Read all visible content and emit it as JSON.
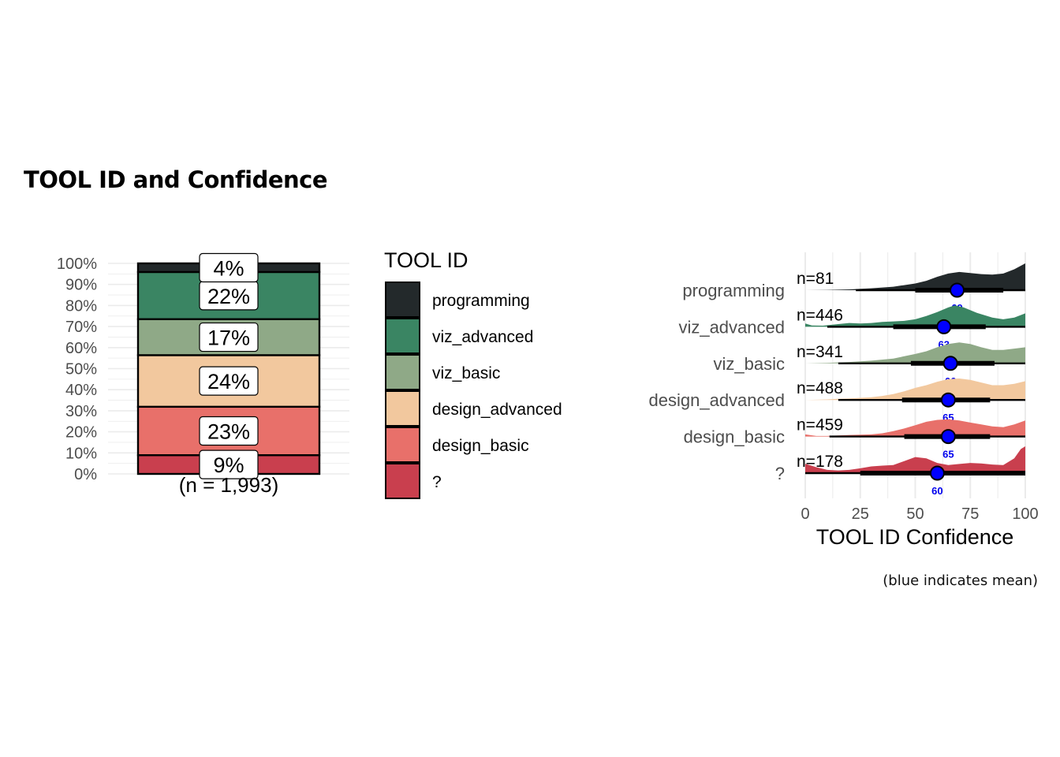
{
  "title": "TOOL ID and Confidence",
  "caption": "(blue indicates mean)",
  "colors": {
    "programming": "#23292b",
    "viz_advanced": "#3a8563",
    "viz_basic": "#8fa987",
    "design_advanced": "#f2c89e",
    "design_basic": "#e8706a",
    "?": "#c93f4e",
    "mean_point": "#0000ff",
    "mean_label": "#0000ee",
    "grid": "#ebebeb"
  },
  "chart_data": [
    {
      "type": "bar",
      "subtype": "stacked-100",
      "ylabel": "",
      "ylim": [
        0,
        1
      ],
      "ytick_labels": [
        "0%",
        "10%",
        "20%",
        "30%",
        "40%",
        "50%",
        "60%",
        "70%",
        "80%",
        "90%",
        "100%"
      ],
      "total_label": "(n = 1,993)",
      "legend_title": "TOOL ID",
      "legend_position": "right",
      "segments": [
        {
          "name": "?",
          "share": 0.089,
          "label": "9%"
        },
        {
          "name": "design_basic",
          "share": 0.23,
          "label": "23%"
        },
        {
          "name": "design_advanced",
          "share": 0.245,
          "label": "24%"
        },
        {
          "name": "viz_basic",
          "share": 0.171,
          "label": "17%"
        },
        {
          "name": "viz_advanced",
          "share": 0.224,
          "label": "22%"
        },
        {
          "name": "programming",
          "share": 0.041,
          "label": "4%"
        }
      ],
      "legend_order": [
        "programming",
        "viz_advanced",
        "viz_basic",
        "design_advanced",
        "design_basic",
        "?"
      ]
    },
    {
      "type": "area",
      "subtype": "ridgeline-halfeye",
      "xlabel": "TOOL ID Confidence",
      "xlim": [
        0,
        100
      ],
      "xticks": [
        0,
        25,
        50,
        75,
        100
      ],
      "grid": true,
      "rows": [
        {
          "name": "programming",
          "n_label": "n=81",
          "mean": 69,
          "mean_label": "69",
          "interval_66": [
            50,
            90
          ],
          "interval_95": [
            23,
            100
          ],
          "density": [
            [
              0,
              0
            ],
            [
              10,
              0.01
            ],
            [
              20,
              0.03
            ],
            [
              30,
              0.07
            ],
            [
              40,
              0.13
            ],
            [
              50,
              0.25
            ],
            [
              55,
              0.35
            ],
            [
              60,
              0.5
            ],
            [
              65,
              0.62
            ],
            [
              70,
              0.68
            ],
            [
              75,
              0.64
            ],
            [
              80,
              0.6
            ],
            [
              85,
              0.58
            ],
            [
              90,
              0.62
            ],
            [
              95,
              0.78
            ],
            [
              100,
              1
            ]
          ]
        },
        {
          "name": "viz_advanced",
          "n_label": "n=446",
          "mean": 63,
          "mean_label": "63",
          "interval_66": [
            40,
            82
          ],
          "interval_95": [
            10,
            100
          ],
          "density": [
            [
              0,
              0.12
            ],
            [
              3,
              0.05
            ],
            [
              8,
              0.04
            ],
            [
              15,
              0.1
            ],
            [
              20,
              0.14
            ],
            [
              25,
              0.12
            ],
            [
              30,
              0.14
            ],
            [
              35,
              0.18
            ],
            [
              40,
              0.2
            ],
            [
              45,
              0.22
            ],
            [
              50,
              0.28
            ],
            [
              55,
              0.4
            ],
            [
              60,
              0.55
            ],
            [
              65,
              0.72
            ],
            [
              68,
              0.8
            ],
            [
              72,
              0.72
            ],
            [
              78,
              0.52
            ],
            [
              85,
              0.34
            ],
            [
              90,
              0.28
            ],
            [
              95,
              0.34
            ],
            [
              100,
              0.5
            ]
          ]
        },
        {
          "name": "viz_basic",
          "n_label": "n=341",
          "mean": 66,
          "mean_label": "66",
          "interval_66": [
            48,
            86
          ],
          "interval_95": [
            15,
            100
          ],
          "density": [
            [
              0,
              0
            ],
            [
              10,
              0.02
            ],
            [
              20,
              0.05
            ],
            [
              30,
              0.1
            ],
            [
              40,
              0.18
            ],
            [
              50,
              0.35
            ],
            [
              55,
              0.45
            ],
            [
              60,
              0.6
            ],
            [
              65,
              0.72
            ],
            [
              70,
              0.78
            ],
            [
              75,
              0.72
            ],
            [
              80,
              0.6
            ],
            [
              85,
              0.5
            ],
            [
              90,
              0.5
            ],
            [
              95,
              0.55
            ],
            [
              100,
              0.6
            ]
          ]
        },
        {
          "name": "design_advanced",
          "n_label": "n=488",
          "mean": 65,
          "mean_label": "65",
          "interval_66": [
            44,
            84
          ],
          "interval_95": [
            15,
            100
          ],
          "density": [
            [
              0,
              0
            ],
            [
              10,
              0.02
            ],
            [
              15,
              0.04
            ],
            [
              20,
              0.06
            ],
            [
              25,
              0.08
            ],
            [
              30,
              0.1
            ],
            [
              35,
              0.15
            ],
            [
              40,
              0.22
            ],
            [
              45,
              0.32
            ],
            [
              50,
              0.45
            ],
            [
              55,
              0.55
            ],
            [
              60,
              0.68
            ],
            [
              65,
              0.78
            ],
            [
              70,
              0.8
            ],
            [
              75,
              0.75
            ],
            [
              80,
              0.65
            ],
            [
              85,
              0.55
            ],
            [
              90,
              0.55
            ],
            [
              95,
              0.6
            ],
            [
              100,
              0.7
            ]
          ]
        },
        {
          "name": "design_basic",
          "n_label": "n=459",
          "mean": 65,
          "mean_label": "65",
          "interval_66": [
            45,
            84
          ],
          "interval_95": [
            11,
            100
          ],
          "density": [
            [
              0,
              0.08
            ],
            [
              5,
              0.02
            ],
            [
              10,
              0.02
            ],
            [
              15,
              0.04
            ],
            [
              20,
              0.06
            ],
            [
              25,
              0.07
            ],
            [
              30,
              0.08
            ],
            [
              35,
              0.12
            ],
            [
              40,
              0.2
            ],
            [
              45,
              0.3
            ],
            [
              50,
              0.42
            ],
            [
              55,
              0.55
            ],
            [
              60,
              0.62
            ],
            [
              65,
              0.64
            ],
            [
              70,
              0.6
            ],
            [
              75,
              0.52
            ],
            [
              80,
              0.45
            ],
            [
              85,
              0.38
            ],
            [
              90,
              0.35
            ],
            [
              95,
              0.45
            ],
            [
              100,
              0.6
            ]
          ]
        },
        {
          "name": "?",
          "n_label": "n=178",
          "mean": 60,
          "mean_label": "60",
          "interval_66": [
            25,
            100
          ],
          "interval_95": [
            0,
            100
          ],
          "density": [
            [
              0,
              0.35
            ],
            [
              5,
              0.22
            ],
            [
              10,
              0.12
            ],
            [
              15,
              0.1
            ],
            [
              20,
              0.12
            ],
            [
              25,
              0.18
            ],
            [
              30,
              0.25
            ],
            [
              35,
              0.28
            ],
            [
              40,
              0.3
            ],
            [
              45,
              0.45
            ],
            [
              50,
              0.6
            ],
            [
              55,
              0.55
            ],
            [
              60,
              0.38
            ],
            [
              65,
              0.3
            ],
            [
              70,
              0.34
            ],
            [
              75,
              0.38
            ],
            [
              80,
              0.36
            ],
            [
              85,
              0.32
            ],
            [
              90,
              0.3
            ],
            [
              95,
              0.55
            ],
            [
              98,
              0.9
            ],
            [
              100,
              1
            ]
          ]
        }
      ]
    }
  ]
}
